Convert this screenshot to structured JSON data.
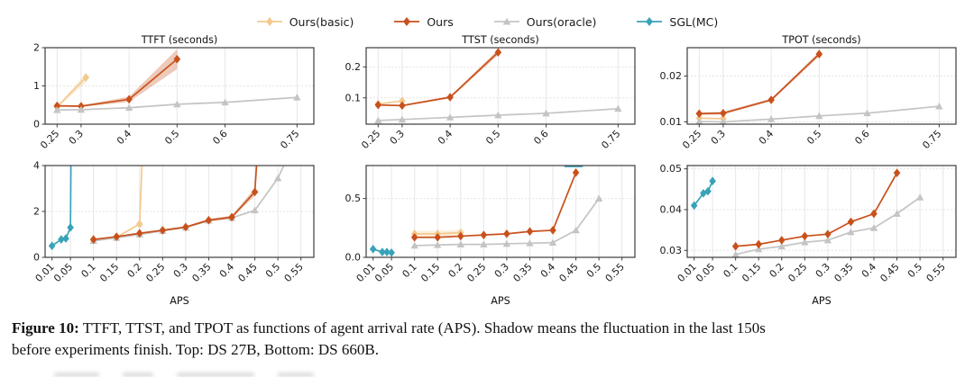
{
  "legend": {
    "items": [
      {
        "label": "Ours(basic)",
        "color": "#f3c98e",
        "marker": "diamond"
      },
      {
        "label": "Ours",
        "color": "#c8511b",
        "marker": "diamond"
      },
      {
        "label": "Ours(oracle)",
        "color": "#c4c4c4",
        "marker": "triangle"
      },
      {
        "label": "SGL(MC)",
        "color": "#38a3b8",
        "marker": "diamond"
      }
    ]
  },
  "caption": {
    "prefix": "Figure 10:",
    "line1": " TTFT, TTST, and TPOT as functions of agent arrival rate (APS). Shadow means the fluctuation in the last 150s",
    "line2": "before experiments finish. Top: DS 27B, Bottom: DS 660B."
  },
  "chart_data": [
    {
      "id": "ttft-top",
      "type": "line",
      "row": "top",
      "title": "TTFT (seconds)",
      "xlabel": "",
      "xlim": [
        0.225,
        0.785
      ],
      "ylim": [
        0,
        2
      ],
      "xticks": [
        0.25,
        0.3,
        0.4,
        0.5,
        0.6,
        0.75
      ],
      "xticklabels": [
        "0.25",
        "0.3",
        "0.4",
        "0.5",
        "0.6",
        "0.75"
      ],
      "yticks": [
        0,
        1,
        2
      ],
      "yticklabels": [
        "0",
        "1",
        "2"
      ],
      "series": [
        {
          "name": "Ours(basic)",
          "color": "#f3c98e",
          "marker": "diamond",
          "x": [
            0.25,
            0.31
          ],
          "y": [
            0.45,
            1.22
          ],
          "band": {
            "lo": [
              0.43,
              1.08
            ],
            "hi": [
              0.47,
              1.34
            ]
          }
        },
        {
          "name": "Ours",
          "color": "#c8511b",
          "marker": "diamond",
          "x": [
            0.25,
            0.3,
            0.4,
            0.5
          ],
          "y": [
            0.48,
            0.47,
            0.65,
            1.7
          ],
          "band": {
            "lo": [
              0.46,
              0.45,
              0.58,
              1.44
            ],
            "hi": [
              0.5,
              0.49,
              0.72,
              1.96
            ]
          }
        },
        {
          "name": "Ours(oracle)",
          "color": "#c4c4c4",
          "marker": "triangle",
          "x": [
            0.25,
            0.3,
            0.4,
            0.5,
            0.6,
            0.75
          ],
          "y": [
            0.37,
            0.38,
            0.43,
            0.52,
            0.57,
            0.7
          ]
        }
      ]
    },
    {
      "id": "ttst-top",
      "type": "line",
      "row": "top",
      "title": "TTST (seconds)",
      "xlabel": "",
      "xlim": [
        0.225,
        0.785
      ],
      "ylim": [
        0.015,
        0.262
      ],
      "xticks": [
        0.25,
        0.3,
        0.4,
        0.5,
        0.6,
        0.75
      ],
      "xticklabels": [
        "0.25",
        "0.3",
        "0.4",
        "0.5",
        "0.6",
        "0.75"
      ],
      "yticks": [
        0.1,
        0.2
      ],
      "yticklabels": [
        "0.1",
        "0.2"
      ],
      "series": [
        {
          "name": "Ours(basic)",
          "color": "#f3c98e",
          "marker": "diamond",
          "x": [
            0.25,
            0.3
          ],
          "y": [
            0.08,
            0.09
          ]
        },
        {
          "name": "Ours",
          "color": "#c8511b",
          "marker": "diamond",
          "x": [
            0.25,
            0.3,
            0.4,
            0.5
          ],
          "y": [
            0.077,
            0.075,
            0.102,
            0.247
          ],
          "band": {
            "lo": [
              0.075,
              0.073,
              0.098,
              0.238
            ],
            "hi": [
              0.079,
              0.077,
              0.106,
              0.256
            ]
          }
        },
        {
          "name": "Ours(oracle)",
          "color": "#c4c4c4",
          "marker": "triangle",
          "x": [
            0.25,
            0.3,
            0.4,
            0.5,
            0.6,
            0.75
          ],
          "y": [
            0.027,
            0.03,
            0.037,
            0.044,
            0.05,
            0.065
          ]
        }
      ]
    },
    {
      "id": "tpot-top",
      "type": "line",
      "row": "top",
      "title": "TPOT (seconds)",
      "xlabel": "",
      "xlim": [
        0.225,
        0.785
      ],
      "ylim": [
        0.0095,
        0.0262
      ],
      "xticks": [
        0.25,
        0.3,
        0.4,
        0.5,
        0.6,
        0.75
      ],
      "xticklabels": [
        "0.25",
        "0.3",
        "0.4",
        "0.5",
        "0.6",
        "0.75"
      ],
      "yticks": [
        0.01,
        0.02
      ],
      "yticklabels": [
        "0.01",
        "0.02"
      ],
      "series": [
        {
          "name": "Ours(basic)",
          "color": "#f3c98e",
          "marker": "diamond",
          "x": [
            0.25,
            0.3
          ],
          "y": [
            0.0108,
            0.0107
          ]
        },
        {
          "name": "Ours",
          "color": "#c8511b",
          "marker": "diamond",
          "x": [
            0.25,
            0.3,
            0.4,
            0.5
          ],
          "y": [
            0.0118,
            0.0119,
            0.0148,
            0.0248
          ],
          "band": {
            "lo": [
              0.0115,
              0.0116,
              0.0145,
              0.0243
            ],
            "hi": [
              0.0121,
              0.0122,
              0.0151,
              0.0253
            ]
          }
        },
        {
          "name": "Ours(oracle)",
          "color": "#c4c4c4",
          "marker": "triangle",
          "x": [
            0.25,
            0.3,
            0.4,
            0.5,
            0.6,
            0.75
          ],
          "y": [
            0.0101,
            0.01,
            0.0106,
            0.0113,
            0.0119,
            0.0134
          ]
        }
      ]
    },
    {
      "id": "ttft-bottom",
      "type": "line",
      "row": "bottom",
      "title": "",
      "xlabel": "APS",
      "xlim": [
        -0.005,
        0.578
      ],
      "ylim": [
        0,
        4
      ],
      "xticks": [
        0.01,
        0.05,
        0.1,
        0.15,
        0.2,
        0.25,
        0.3,
        0.35,
        0.4,
        0.45,
        0.5,
        0.55
      ],
      "xticklabels": [
        "0.01",
        "0.05",
        "0.1",
        "0.15",
        "0.2",
        "0.25",
        "0.3",
        "0.35",
        "0.4",
        "0.45",
        "0.5",
        "0.55"
      ],
      "yticks": [
        0,
        2,
        4
      ],
      "yticklabels": [
        "0",
        "2",
        "4"
      ],
      "series": [
        {
          "name": "SGL(MC)",
          "color": "#38a3b8",
          "marker": "diamond",
          "x": [
            0.01,
            0.03,
            0.04,
            0.05,
            0.053
          ],
          "y": [
            0.5,
            0.78,
            0.82,
            1.3,
            9
          ]
        },
        {
          "name": "Ours(basic)",
          "color": "#f3c98e",
          "marker": "diamond",
          "x": [
            0.1,
            0.15,
            0.2,
            0.215
          ],
          "y": [
            0.75,
            0.88,
            1.45,
            9
          ]
        },
        {
          "name": "Ours(oracle)",
          "color": "#c4c4c4",
          "marker": "triangle",
          "x": [
            0.1,
            0.15,
            0.2,
            0.25,
            0.3,
            0.35,
            0.4,
            0.45,
            0.5,
            0.52
          ],
          "y": [
            0.72,
            0.85,
            1.0,
            1.15,
            1.3,
            1.6,
            1.72,
            2.05,
            3.45,
            4.3
          ]
        },
        {
          "name": "Ours",
          "color": "#c8511b",
          "marker": "diamond",
          "x": [
            0.1,
            0.15,
            0.2,
            0.25,
            0.3,
            0.35,
            0.4,
            0.45,
            0.47
          ],
          "y": [
            0.78,
            0.9,
            1.05,
            1.18,
            1.32,
            1.62,
            1.75,
            2.85,
            9
          ],
          "band": {
            "lo": [
              0.76,
              0.88,
              1.02,
              1.14,
              1.28,
              1.56,
              1.7,
              2.68,
              8
            ],
            "hi": [
              0.8,
              0.92,
              1.08,
              1.22,
              1.36,
              1.68,
              1.82,
              3.02,
              10
            ]
          }
        }
      ]
    },
    {
      "id": "ttst-bottom",
      "type": "line",
      "row": "bottom",
      "title": "",
      "xlabel": "APS",
      "xlim": [
        -0.005,
        0.578
      ],
      "ylim": [
        0,
        0.78
      ],
      "xticks": [
        0.01,
        0.05,
        0.1,
        0.15,
        0.2,
        0.25,
        0.3,
        0.35,
        0.4,
        0.45,
        0.5,
        0.55
      ],
      "xticklabels": [
        "0.01",
        "0.05",
        "0.1",
        "0.15",
        "0.2",
        "0.25",
        "0.3",
        "0.35",
        "0.4",
        "0.45",
        "0.5",
        "0.55"
      ],
      "yticks": [
        0,
        0.5
      ],
      "yticklabels": [
        "0.0",
        "0.5"
      ],
      "series": [
        {
          "name": "SGL(MC)",
          "color": "#38a3b8",
          "marker": "diamond",
          "x": [
            0.01,
            0.03,
            0.04,
            0.05
          ],
          "y": [
            0.07,
            0.045,
            0.045,
            0.04
          ]
        },
        {
          "name": "SGL(MC)-offscale",
          "color": "#38a3b8",
          "marker": "none",
          "x": [
            0.425,
            0.465
          ],
          "y": [
            0.772,
            0.772
          ]
        },
        {
          "name": "Ours(basic)",
          "color": "#f3c98e",
          "marker": "diamond",
          "x": [
            0.1,
            0.15,
            0.2
          ],
          "y": [
            0.2,
            0.2,
            0.21
          ],
          "band": {
            "lo": [
              0.18,
              0.18,
              0.185
            ],
            "hi": [
              0.225,
              0.225,
              0.235
            ]
          }
        },
        {
          "name": "Ours(oracle)",
          "color": "#c4c4c4",
          "marker": "triangle",
          "x": [
            0.1,
            0.15,
            0.2,
            0.25,
            0.3,
            0.35,
            0.4,
            0.45,
            0.5
          ],
          "y": [
            0.1,
            0.105,
            0.11,
            0.11,
            0.115,
            0.12,
            0.125,
            0.23,
            0.5
          ]
        },
        {
          "name": "Ours",
          "color": "#c8511b",
          "marker": "diamond",
          "x": [
            0.1,
            0.15,
            0.2,
            0.25,
            0.3,
            0.35,
            0.4,
            0.45
          ],
          "y": [
            0.17,
            0.17,
            0.18,
            0.19,
            0.2,
            0.22,
            0.23,
            0.72
          ]
        }
      ]
    },
    {
      "id": "tpot-bottom",
      "type": "line",
      "row": "bottom",
      "title": "",
      "xlabel": "APS",
      "xlim": [
        -0.005,
        0.578
      ],
      "ylim": [
        0.0283,
        0.0508
      ],
      "xticks": [
        0.01,
        0.05,
        0.1,
        0.15,
        0.2,
        0.25,
        0.3,
        0.35,
        0.4,
        0.45,
        0.5,
        0.55
      ],
      "xticklabels": [
        "0.01",
        "0.05",
        "0.1",
        "0.15",
        "0.2",
        "0.25",
        "0.3",
        "0.35",
        "0.4",
        "0.45",
        "0.5",
        "0.55"
      ],
      "yticks": [
        0.03,
        0.04,
        0.05
      ],
      "yticklabels": [
        "0.03",
        "0.04",
        "0.05"
      ],
      "series": [
        {
          "name": "SGL(MC)",
          "color": "#38a3b8",
          "marker": "diamond",
          "x": [
            0.01,
            0.03,
            0.04,
            0.05
          ],
          "y": [
            0.041,
            0.044,
            0.0445,
            0.047
          ]
        },
        {
          "name": "Ours(oracle)",
          "color": "#c4c4c4",
          "marker": "triangle",
          "x": [
            0.1,
            0.15,
            0.2,
            0.25,
            0.3,
            0.35,
            0.4,
            0.45,
            0.5
          ],
          "y": [
            0.029,
            0.0303,
            0.031,
            0.032,
            0.0325,
            0.0345,
            0.0355,
            0.039,
            0.043
          ]
        },
        {
          "name": "Ours",
          "color": "#c8511b",
          "marker": "diamond",
          "x": [
            0.1,
            0.15,
            0.2,
            0.25,
            0.3,
            0.35,
            0.4,
            0.45
          ],
          "y": [
            0.031,
            0.0315,
            0.0325,
            0.0335,
            0.034,
            0.037,
            0.039,
            0.049
          ]
        }
      ]
    }
  ]
}
